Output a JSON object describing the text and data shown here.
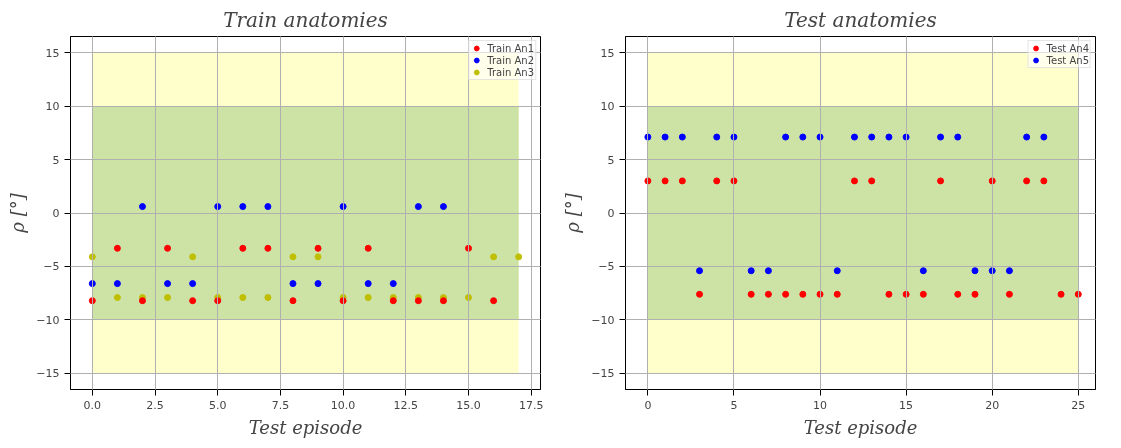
{
  "chart_data": [
    {
      "type": "scatter",
      "title": "Train anatomies",
      "xlabel": "Test episode",
      "ylabel": "ρ [°]",
      "xlim": [
        -0.87,
        17.87
      ],
      "ylim": [
        -16.5,
        16.5
      ],
      "xticks": [
        {
          "value": 0,
          "label": "0.0"
        },
        {
          "value": 2.5,
          "label": "2.5"
        },
        {
          "value": 5,
          "label": "5.0"
        },
        {
          "value": 7.5,
          "label": "7.5"
        },
        {
          "value": 10,
          "label": "10.0"
        },
        {
          "value": 12.5,
          "label": "12.5"
        },
        {
          "value": 15,
          "label": "15.0"
        },
        {
          "value": 17.5,
          "label": "17.5"
        }
      ],
      "yticks": [
        -15,
        -10,
        -5,
        0,
        5,
        10,
        15
      ],
      "grid": true,
      "legend": "top right",
      "marker": "circle",
      "bands": [
        {
          "axis": "y",
          "from": -15,
          "to": 15,
          "color": "#ffffcc"
        },
        {
          "axis": "y",
          "from": -10,
          "to": 10,
          "color": "#cce3a5"
        }
      ],
      "series": [
        {
          "name": "Train An1",
          "color": "#ff0000",
          "x": [
            0,
            1,
            2,
            3,
            4,
            5,
            6,
            7,
            8,
            9,
            10,
            11,
            12,
            13,
            14,
            15,
            16
          ],
          "values": [
            -8.2,
            -3.3,
            -8.2,
            -3.3,
            -8.2,
            -8.2,
            -3.3,
            -3.3,
            -8.2,
            -3.3,
            -8.2,
            -3.3,
            -8.2,
            -8.2,
            -8.2,
            -3.3,
            -8.2
          ]
        },
        {
          "name": "Train An2",
          "color": "#0000ff",
          "x": [
            0,
            1,
            2,
            3,
            4,
            5,
            6,
            7,
            8,
            9,
            10,
            11,
            12,
            13,
            14
          ],
          "values": [
            -6.6,
            -6.6,
            0.6,
            -6.6,
            -6.6,
            0.6,
            0.6,
            0.6,
            -6.6,
            -6.6,
            0.6,
            -6.6,
            -6.6,
            0.6,
            0.6
          ]
        },
        {
          "name": "Train An3",
          "color": "#bfbf00",
          "x": [
            0,
            1,
            2,
            3,
            4,
            5,
            6,
            7,
            8,
            9,
            10,
            11,
            12,
            13,
            14,
            15,
            16,
            17
          ],
          "values": [
            -4.1,
            -7.9,
            -7.9,
            -7.9,
            -4.1,
            -7.9,
            -7.9,
            -7.9,
            -4.1,
            -4.1,
            -7.9,
            -7.9,
            -7.9,
            -7.9,
            -7.9,
            -7.9,
            -4.1,
            -4.1
          ]
        }
      ]
    },
    {
      "type": "scatter",
      "title": "Test anatomies",
      "xlabel": "Test episode",
      "ylabel": "ρ [°]",
      "xlim": [
        -1.3,
        26.0
      ],
      "ylim": [
        -16.5,
        16.5
      ],
      "xticks": [
        0,
        5,
        10,
        15,
        20,
        25
      ],
      "yticks": [
        -15,
        -10,
        -5,
        0,
        5,
        10,
        15
      ],
      "grid": true,
      "legend": "top right",
      "marker": "circle",
      "bands": [
        {
          "axis": "y",
          "from": -15,
          "to": 15,
          "color": "#ffffcc"
        },
        {
          "axis": "y",
          "from": -10,
          "to": 10,
          "color": "#cce3a5"
        }
      ],
      "series": [
        {
          "name": "Test An4",
          "color": "#ff0000",
          "x": [
            0,
            1,
            2,
            3,
            4,
            5,
            6,
            7,
            8,
            9,
            10,
            11,
            12,
            13,
            14,
            15,
            16,
            17,
            18,
            19,
            20,
            21,
            22,
            23,
            24,
            25
          ],
          "values": [
            3,
            3,
            3,
            -7.6,
            3,
            3,
            -7.6,
            -7.6,
            -7.6,
            -7.6,
            -7.6,
            -7.6,
            3,
            3,
            -7.6,
            -7.6,
            -7.6,
            3,
            -7.6,
            -7.6,
            3,
            -7.6,
            3,
            3,
            -7.6,
            -7.6
          ]
        },
        {
          "name": "Test An5",
          "color": "#0000ff",
          "x": [
            0,
            1,
            2,
            3,
            4,
            5,
            6,
            7,
            8,
            9,
            10,
            11,
            12,
            13,
            14,
            15,
            16,
            17,
            18,
            19,
            20,
            21,
            22,
            23
          ],
          "values": [
            7.1,
            7.1,
            7.1,
            -5.4,
            7.1,
            7.1,
            -5.4,
            -5.4,
            7.1,
            7.1,
            7.1,
            -5.4,
            7.1,
            7.1,
            7.1,
            7.1,
            -5.4,
            7.1,
            7.1,
            -5.4,
            -5.4,
            -5.4,
            7.1,
            7.1
          ]
        }
      ]
    }
  ]
}
